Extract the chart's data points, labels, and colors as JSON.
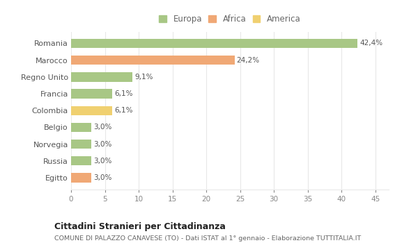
{
  "categories": [
    "Romania",
    "Marocco",
    "Regno Unito",
    "Francia",
    "Colombia",
    "Belgio",
    "Norvegia",
    "Russia",
    "Egitto"
  ],
  "values": [
    42.4,
    24.2,
    9.1,
    6.1,
    6.1,
    3.0,
    3.0,
    3.0,
    3.0
  ],
  "labels": [
    "42,4%",
    "24,2%",
    "9,1%",
    "6,1%",
    "6,1%",
    "3,0%",
    "3,0%",
    "3,0%",
    "3,0%"
  ],
  "colors": [
    "#a8c785",
    "#f0a875",
    "#a8c785",
    "#a8c785",
    "#f0d070",
    "#a8c785",
    "#a8c785",
    "#a8c785",
    "#f0a875"
  ],
  "legend_labels": [
    "Europa",
    "Africa",
    "America"
  ],
  "legend_colors": [
    "#a8c785",
    "#f0a875",
    "#f0d070"
  ],
  "title": "Cittadini Stranieri per Cittadinanza",
  "subtitle": "COMUNE DI PALAZZO CANAVESE (TO) - Dati ISTAT al 1° gennaio - Elaborazione TUTTITALIA.IT",
  "xlim": [
    0,
    47
  ],
  "xticks": [
    0,
    5,
    10,
    15,
    20,
    25,
    30,
    35,
    40,
    45
  ],
  "background_color": "#ffffff",
  "grid_color": "#e8e8e8"
}
